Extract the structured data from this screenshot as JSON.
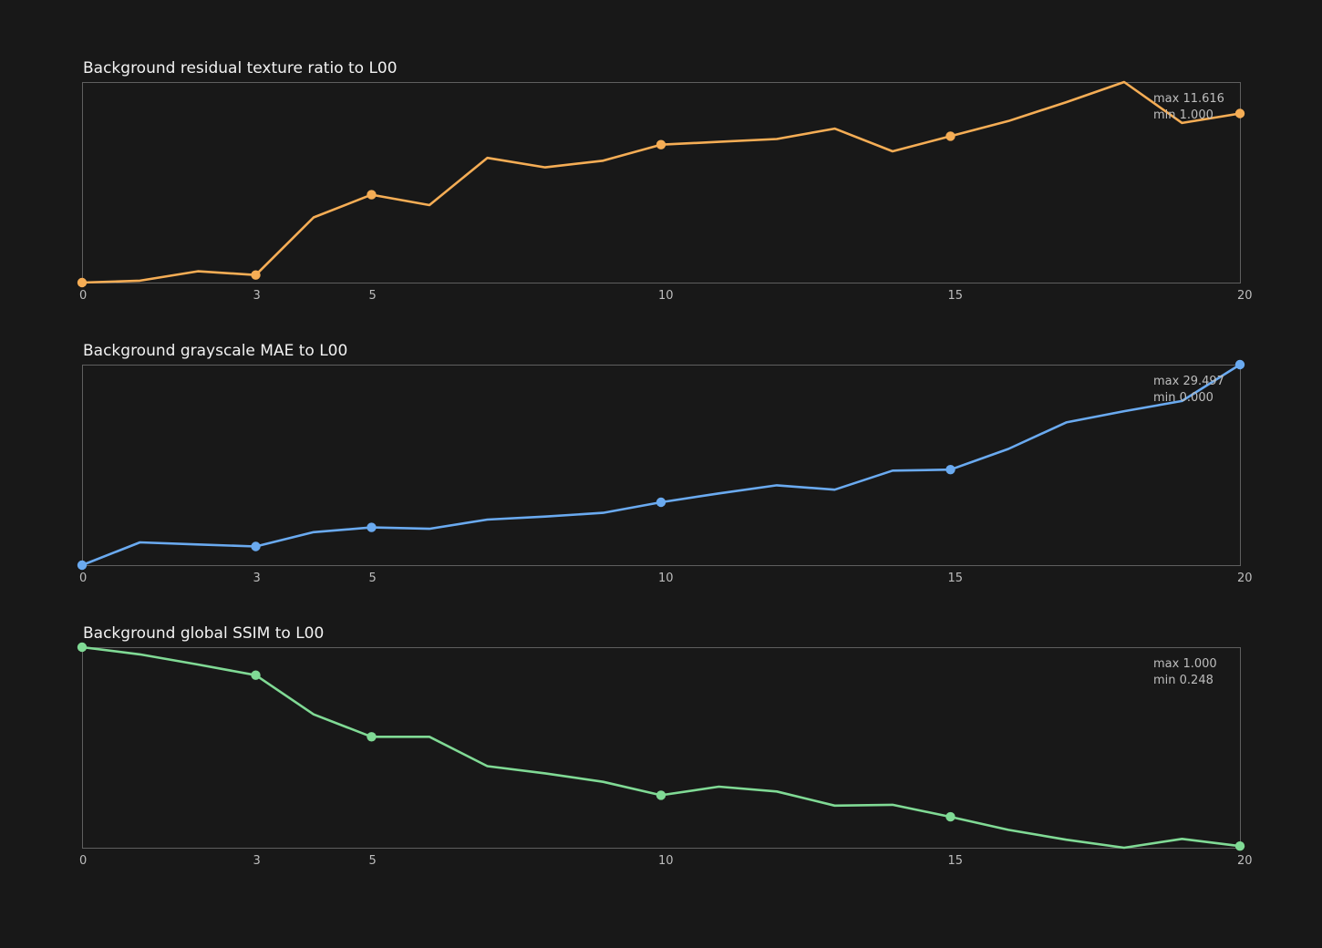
{
  "chart_data": [
    {
      "type": "line",
      "title": "Background residual texture ratio to L00",
      "xlabel": "",
      "ylabel": "",
      "x": [
        0,
        1,
        2,
        3,
        4,
        5,
        6,
        7,
        8,
        9,
        10,
        11,
        12,
        13,
        14,
        15,
        16,
        17,
        18,
        19,
        20
      ],
      "xticks": [
        "0",
        "3",
        "5",
        "10",
        "15",
        "20"
      ],
      "xtick_values": [
        0,
        3,
        5,
        10,
        15,
        20
      ],
      "marker_x": [
        0,
        3,
        5,
        10,
        15,
        20
      ],
      "xlim": [
        0,
        20
      ],
      "ylim": [
        1.0,
        11.616
      ],
      "series": [
        {
          "color": "#f5ad55",
          "values": [
            1.0,
            1.1,
            1.6,
            1.4,
            4.45,
            5.65,
            5.1,
            7.6,
            7.1,
            7.45,
            8.3,
            8.45,
            8.6,
            9.15,
            7.95,
            8.75,
            9.55,
            10.55,
            11.616,
            9.45,
            9.95
          ]
        }
      ],
      "stats": {
        "max": "max 11.616",
        "min": "min 1.000"
      },
      "grid": false
    },
    {
      "type": "line",
      "title": "Background grayscale MAE to L00",
      "xlabel": "",
      "ylabel": "",
      "x": [
        0,
        1,
        2,
        3,
        4,
        5,
        6,
        7,
        8,
        9,
        10,
        11,
        12,
        13,
        14,
        15,
        16,
        17,
        18,
        19,
        20
      ],
      "xticks": [
        "0",
        "3",
        "5",
        "10",
        "15",
        "20"
      ],
      "xtick_values": [
        0,
        3,
        5,
        10,
        15,
        20
      ],
      "marker_x": [
        0,
        3,
        5,
        10,
        15,
        20
      ],
      "xlim": [
        0,
        20
      ],
      "ylim": [
        0.0,
        29.497
      ],
      "series": [
        {
          "color": "#6aaaf0",
          "values": [
            0.0,
            3.35,
            3.05,
            2.75,
            4.85,
            5.55,
            5.35,
            6.7,
            7.15,
            7.7,
            9.25,
            10.55,
            11.75,
            11.1,
            13.9,
            14.05,
            17.1,
            21.0,
            22.65,
            24.15,
            29.497
          ]
        }
      ],
      "stats": {
        "max": "max 29.497",
        "min": "min 0.000"
      },
      "grid": false
    },
    {
      "type": "line",
      "title": "Background global SSIM to L00",
      "xlabel": "",
      "ylabel": "",
      "x": [
        0,
        1,
        2,
        3,
        4,
        5,
        6,
        7,
        8,
        9,
        10,
        11,
        12,
        13,
        14,
        15,
        16,
        17,
        18,
        19,
        20
      ],
      "xticks": [
        "0",
        "3",
        "5",
        "10",
        "15",
        "20"
      ],
      "xtick_values": [
        0,
        3,
        5,
        10,
        15,
        20
      ],
      "marker_x": [
        0,
        3,
        5,
        10,
        15,
        20
      ],
      "xlim": [
        0,
        20
      ],
      "ylim": [
        0.248,
        1.0
      ],
      "series": [
        {
          "color": "#80da95",
          "values": [
            1.0,
            0.973,
            0.935,
            0.895,
            0.748,
            0.664,
            0.664,
            0.554,
            0.527,
            0.495,
            0.445,
            0.477,
            0.459,
            0.406,
            0.409,
            0.364,
            0.315,
            0.278,
            0.248,
            0.281,
            0.254
          ]
        }
      ],
      "stats": {
        "max": "max 1.000",
        "min": "min 0.248"
      },
      "grid": false
    }
  ]
}
